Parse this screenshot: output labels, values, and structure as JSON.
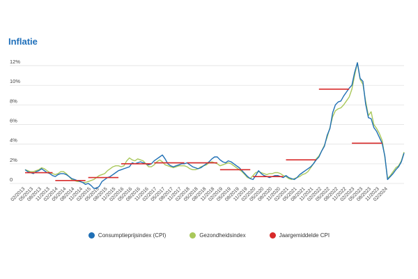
{
  "title": "Inflatie",
  "colors": {
    "title": "#1e6fba",
    "cpi": "#1f6fb5",
    "health": "#a9c85a",
    "annual": "#d82a2a",
    "grid": "#e2e2e2"
  },
  "legend": [
    {
      "label": "Consumptieprijsindex (CPI)",
      "color": "#1f6fb5"
    },
    {
      "label": "Gezondheidsindex",
      "color": "#a9c85a"
    },
    {
      "label": "Jaargemiddelde CPI",
      "color": "#d82a2a"
    }
  ],
  "chart_data": {
    "type": "line",
    "title": "Inflatie",
    "xlabel": "",
    "ylabel": "",
    "ylim": [
      0,
      13
    ],
    "y_ticks": [
      0,
      2,
      4,
      6,
      8,
      10,
      12
    ],
    "y_tick_labels": [
      "0",
      "2%",
      "4%",
      "6%",
      "8%",
      "10%",
      "12%"
    ],
    "x_start": "02/2013",
    "x_tick_labels": [
      "02/2013",
      "05/2013",
      "08/2013",
      "11/2013",
      "02/2014",
      "05/2014",
      "08/2014",
      "11/2014",
      "02/2015",
      "05/2015",
      "08/2015",
      "11/2015",
      "02/2016",
      "05/2016",
      "08/2016",
      "11/2016",
      "02/2017",
      "05/2017",
      "08/2017",
      "11/2017",
      "02/2018",
      "05/2018",
      "08/2018",
      "11/2018",
      "02/2019",
      "05/2019",
      "08/2019",
      "11/2019",
      "02/2020",
      "05/2020",
      "08/2020",
      "11/2020",
      "02/2021",
      "05/2021",
      "08/2021",
      "11/2021",
      "02/2022",
      "05/2022",
      "08/2022",
      "11/2022",
      "02/2023",
      "05/2023",
      "08/2023",
      "11/2023",
      "02/2024"
    ],
    "grid": true,
    "legend_position": "bottom",
    "series": [
      {
        "name": "Consumptieprijsindex (CPI)",
        "values": [
          1.4,
          1.2,
          1.1,
          1.0,
          1.2,
          1.3,
          1.5,
          1.3,
          1.1,
          1.0,
          0.8,
          0.7,
          0.9,
          1.0,
          1.0,
          0.9,
          0.7,
          0.5,
          0.4,
          0.3,
          0.2,
          0.1,
          -0.1,
          0.0,
          -0.2,
          -0.5,
          -0.5,
          -0.3,
          0.2,
          0.4,
          0.6,
          0.7,
          0.9,
          1.1,
          1.3,
          1.4,
          1.5,
          1.6,
          1.7,
          2.1,
          2.0,
          2.1,
          2.2,
          2.1,
          2.0,
          1.9,
          2.0,
          2.3,
          2.5,
          2.7,
          2.9,
          2.5,
          2.0,
          1.8,
          1.7,
          1.8,
          1.9,
          2.0,
          2.0,
          2.1,
          1.9,
          1.7,
          1.6,
          1.5,
          1.6,
          1.8,
          2.0,
          2.2,
          2.5,
          2.7,
          2.7,
          2.4,
          2.2,
          2.1,
          2.3,
          2.2,
          2.0,
          1.8,
          1.6,
          1.3,
          1.0,
          0.7,
          0.5,
          0.4,
          0.8,
          1.3,
          1.0,
          0.8,
          0.7,
          0.6,
          0.7,
          0.8,
          0.8,
          0.7,
          0.6,
          0.8,
          0.6,
          0.5,
          0.4,
          0.6,
          0.9,
          1.1,
          1.3,
          1.5,
          1.7,
          2.0,
          2.4,
          2.7,
          3.3,
          3.8,
          4.9,
          5.6,
          7.2,
          8.0,
          8.3,
          8.4,
          8.9,
          9.3,
          9.7,
          10.0,
          11.3,
          12.3,
          10.7,
          10.4,
          8.1,
          6.7,
          6.6,
          5.7,
          5.3,
          4.7,
          4.1,
          2.8,
          0.4,
          0.7,
          1.0,
          1.4,
          1.7,
          2.2,
          3.1
        ]
      },
      {
        "name": "Gezondheidsindex",
        "values": [
          1.4,
          1.3,
          1.2,
          1.2,
          1.3,
          1.4,
          1.6,
          1.5,
          1.3,
          1.1,
          1.0,
          0.9,
          1.0,
          1.2,
          1.2,
          1.0,
          0.7,
          0.4,
          0.3,
          0.2,
          0.2,
          0.1,
          0.1,
          0.2,
          0.3,
          0.4,
          0.6,
          0.8,
          0.9,
          1.0,
          1.3,
          1.5,
          1.7,
          1.8,
          1.8,
          1.7,
          1.8,
          2.3,
          2.6,
          2.4,
          2.3,
          2.5,
          2.4,
          2.3,
          2.0,
          1.7,
          1.7,
          1.9,
          2.2,
          2.4,
          2.2,
          1.9,
          1.8,
          1.7,
          1.6,
          1.7,
          1.8,
          1.8,
          1.8,
          1.7,
          1.5,
          1.4,
          1.4,
          1.5,
          1.7,
          1.8,
          1.9,
          2.1,
          2.2,
          2.1,
          2.0,
          1.8,
          1.9,
          2.0,
          2.1,
          2.0,
          1.8,
          1.6,
          1.4,
          1.2,
          0.9,
          0.6,
          0.5,
          0.8,
          1.1,
          1.2,
          1.1,
          1.0,
          0.9,
          1.0,
          1.0,
          1.1,
          1.1,
          1.0,
          0.8,
          0.7,
          0.5,
          0.4,
          0.5,
          0.6,
          0.7,
          0.9,
          1.0,
          1.2,
          1.6,
          2.0,
          2.5,
          2.8,
          3.3,
          3.9,
          4.7,
          5.7,
          6.8,
          7.4,
          7.6,
          7.7,
          8.0,
          8.4,
          8.8,
          9.6,
          11.0,
          12.3,
          10.6,
          10.1,
          8.4,
          6.9,
          7.3,
          6.0,
          5.6,
          5.1,
          4.4,
          2.7,
          0.5,
          0.8,
          1.2,
          1.6,
          1.8,
          2.3,
          3.2
        ]
      },
      {
        "name": "Jaargemiddelde CPI",
        "segments": [
          {
            "year": "2013",
            "value": 1.1
          },
          {
            "year": "2014",
            "value": 0.3
          },
          {
            "year": "2015",
            "value": 0.6
          },
          {
            "year": "2016",
            "value": 2.0
          },
          {
            "year": "2017",
            "value": 2.1
          },
          {
            "year": "2018",
            "value": 2.1
          },
          {
            "year": "2019",
            "value": 1.4
          },
          {
            "year": "2020",
            "value": 0.7
          },
          {
            "year": "2021",
            "value": 2.4
          },
          {
            "year": "2022",
            "value": 9.6
          },
          {
            "year": "2023",
            "value": 4.1
          }
        ]
      }
    ]
  }
}
